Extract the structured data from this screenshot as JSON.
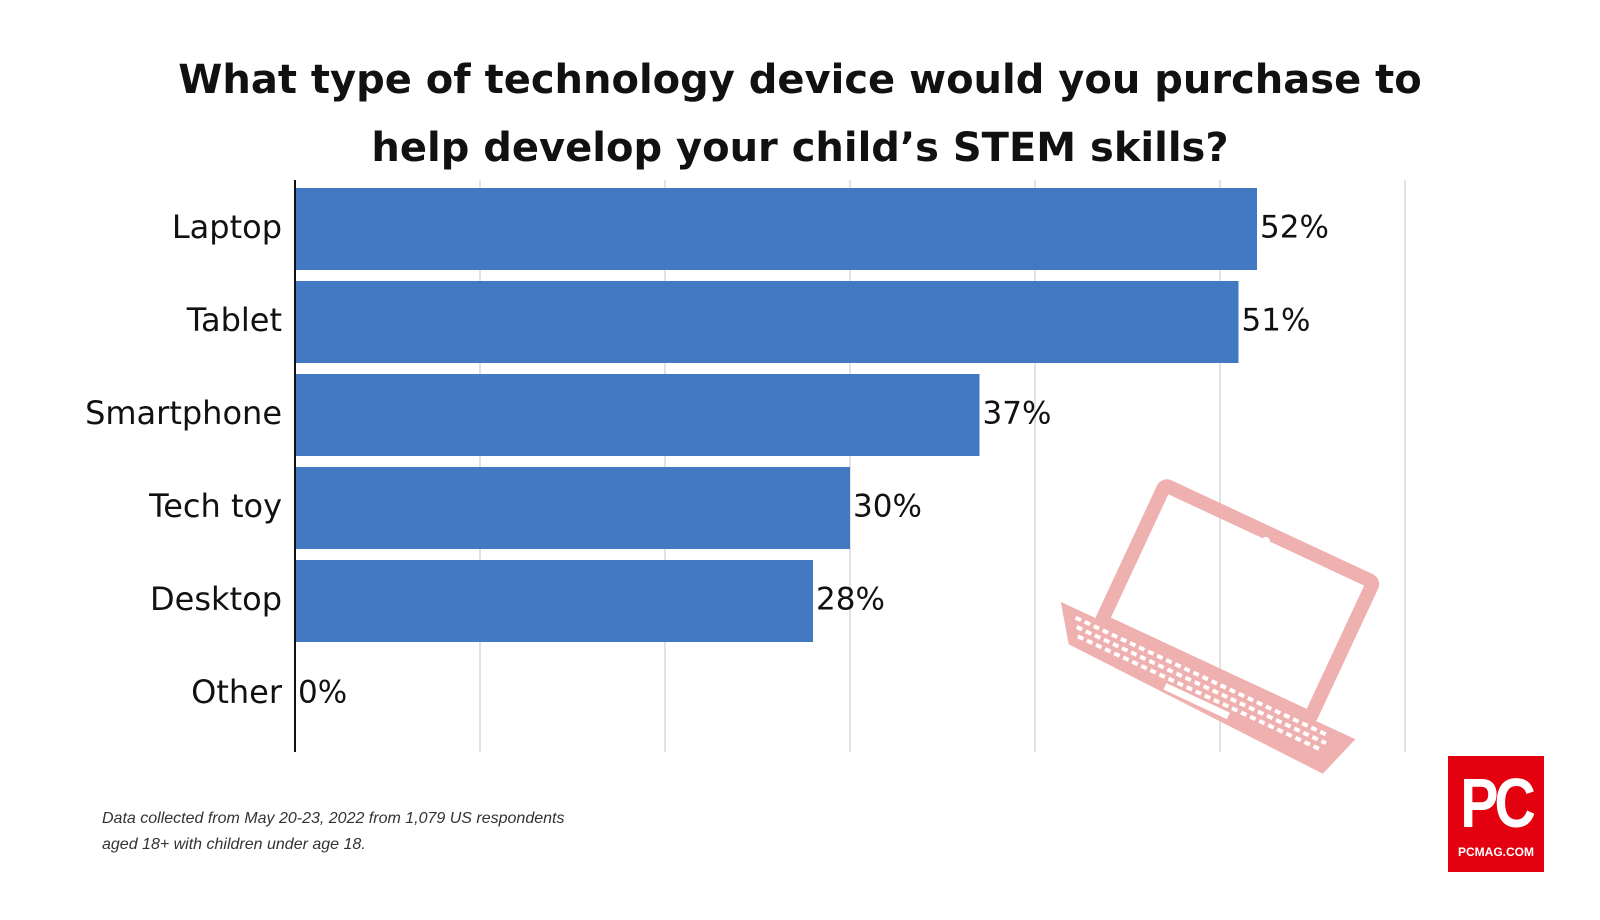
{
  "chart_data": {
    "type": "bar",
    "orientation": "horizontal",
    "title": "What type of technology device would you purchase to help develop your child’s STEM skills?",
    "title_lines": [
      "What type of technology device would you purchase to",
      "help develop your child’s STEM skills?"
    ],
    "categories": [
      "Laptop",
      "Tablet",
      "Smartphone",
      "Tech toy",
      "Desktop",
      "Other"
    ],
    "values": [
      52,
      51,
      37,
      30,
      28,
      0
    ],
    "value_labels": [
      "52%",
      "51%",
      "37%",
      "30%",
      "28%",
      "0%"
    ],
    "xlim": [
      0,
      60
    ],
    "grid": true,
    "bar_color": "#4379c2",
    "gridline_color": "#d9d9d9",
    "legend": "none"
  },
  "footnote": {
    "lines": [
      "Data collected from May 20-23, 2022 from 1,079 US respondents",
      "aged 18+ with children under age 18."
    ]
  },
  "logo": {
    "big_text": "PC",
    "small_text": "PCMAG.COM",
    "color": "#e3000f"
  },
  "decoration": {
    "icon": "laptop-icon",
    "color": "#efb0b0"
  }
}
